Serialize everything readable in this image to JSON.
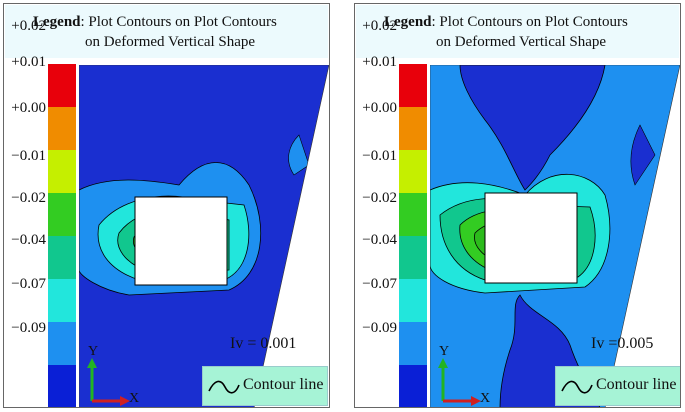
{
  "colors": {
    "band_colors": [
      "#e8000b",
      "#f08c00",
      "#c5ef00",
      "#33cc22",
      "#11c78e",
      "#22e6dc",
      "#1e90f0",
      "#0a1fd6"
    ],
    "background_field": "#1a2fd0",
    "legend_box_bg": "#ecfafd",
    "contour_box_bg": "#a6f3d6"
  },
  "scale_ticks": [
    "+0.02",
    "+0.01",
    "+0.00",
    "−0.01",
    "−0.02",
    "−0.04",
    "−0.07",
    "−0.09"
  ],
  "panels": [
    {
      "legend_bold": "Legend",
      "legend_line1": ": Plot Contours on Plot Contours",
      "legend_line2": "on Deformed Vertical Shape",
      "iv_label": "Iv = 0.001",
      "contour_label": "Contour line",
      "axis_y": "Y",
      "axis_x": "X"
    },
    {
      "legend_bold": "Legend",
      "legend_line1": ": Plot Contours on Plot Contours",
      "legend_line2": "on Deformed Vertical Shape",
      "iv_label": "Iv =0.005",
      "contour_label": "Contour line",
      "axis_y": "Y",
      "axis_x": "X"
    }
  ]
}
